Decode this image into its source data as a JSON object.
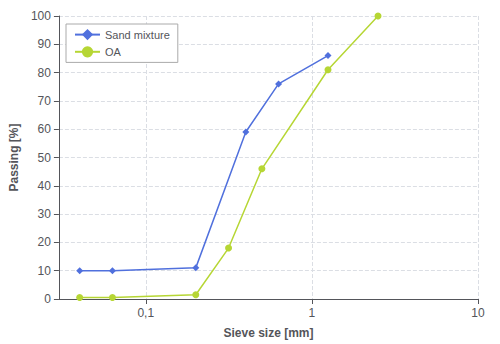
{
  "chart_data": {
    "type": "line",
    "xlabel": "Sieve size [mm]",
    "ylabel": "Passing [%]",
    "log": "x",
    "xlim": [
      0.03,
      10
    ],
    "xticks": [
      {
        "value": 0.1,
        "label": "0,1"
      },
      1,
      10
    ],
    "ylim": [
      0,
      100
    ],
    "yticks": [
      0,
      10,
      20,
      30,
      40,
      50,
      60,
      70,
      80,
      90,
      100
    ],
    "grid": true,
    "legend": "upper left",
    "series": [
      {
        "name": "Sand mixture",
        "marker": "diamond",
        "x": [
          0.04,
          0.063,
          0.2,
          0.4,
          0.63,
          1.25
        ],
        "values": [
          10,
          10,
          11,
          59,
          76,
          86
        ]
      },
      {
        "name": "OA",
        "marker": "circle",
        "x": [
          0.04,
          0.063,
          0.2,
          0.315,
          0.5,
          1.25,
          2.5
        ],
        "values": [
          0.5,
          0.5,
          1.5,
          18,
          46,
          81,
          100
        ]
      }
    ]
  }
}
